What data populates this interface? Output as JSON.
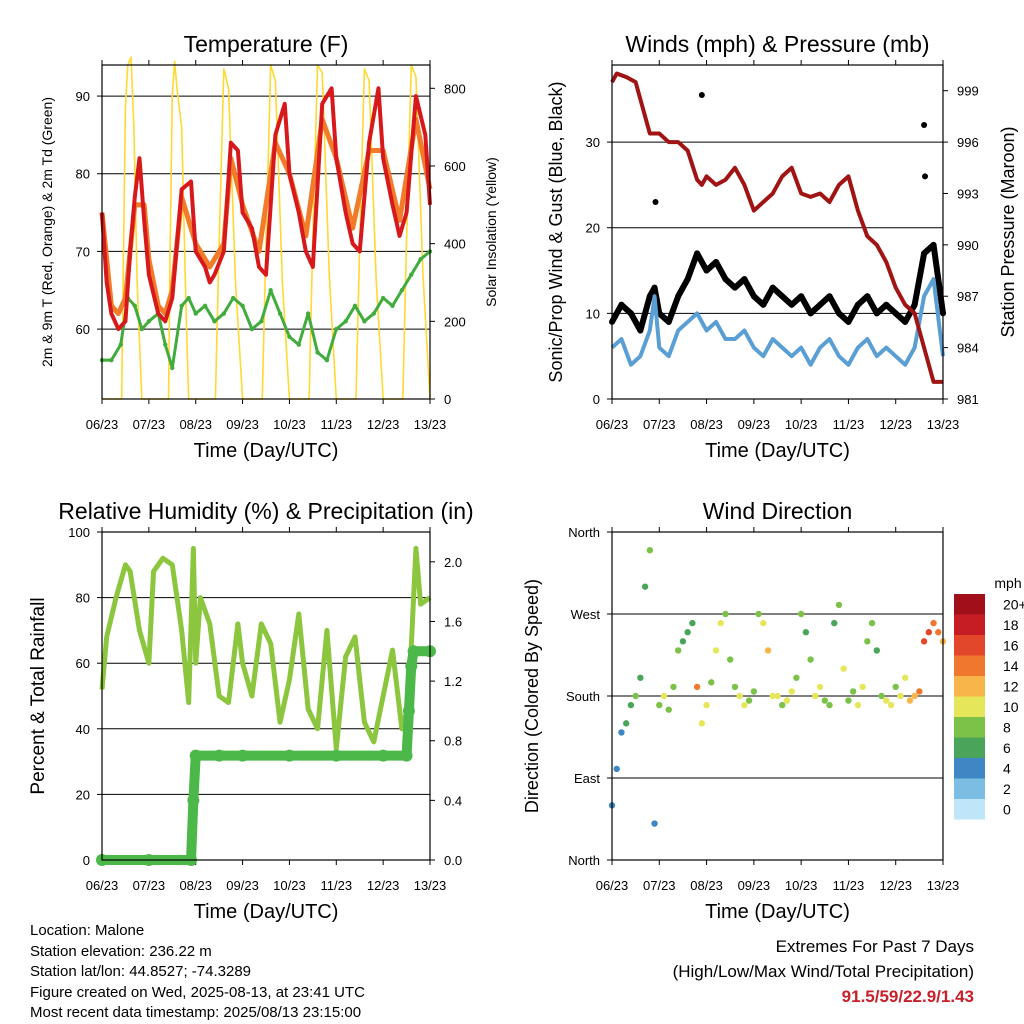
{
  "x_tick_labels": [
    "06/23",
    "07/23",
    "08/23",
    "09/23",
    "10/23",
    "11/23",
    "12/23",
    "13/23"
  ],
  "colors": {
    "temp2m": "#d7191c",
    "temp9m": "#f27b2a",
    "dewpoint": "#41ab3d",
    "solar": "#ffd92f",
    "gust": "#000000",
    "wind": "#5a9fd4",
    "pressure": "#a01414",
    "humidity": "#8cc63f",
    "precip": "#4db84a"
  },
  "footer": {
    "location": "Location: Malone",
    "elevation": "Station elevation: 236.22 m",
    "latlon": "Station lat/lon: 44.8527; -74.3289",
    "created": "Figure created on Wed, 2025-08-13, at 23:41 UTC",
    "recent": "Most recent data timestamp: 2025/08/13 23:15:00",
    "extremes_title": "Extremes For Past 7 Days",
    "extremes_subtitle": "(High/Low/Max Wind/Total Precipitation)",
    "extremes_values": "91.5/59/22.9/1.43"
  },
  "chart_data": [
    {
      "type": "line",
      "title": "Temperature (F)",
      "xlabel": "Time (Day/UTC)",
      "ylabel_left": "2m & 9m T (Red, Orange) & 2m Td (Green)",
      "ylabel_right": "Solar Insolation (Yellow)",
      "ylim_left": [
        51,
        94
      ],
      "ylim_right": [
        0,
        860
      ],
      "yticks_left": [
        "60",
        "70",
        "80",
        "90"
      ],
      "yticks_right": [
        "0",
        "200",
        "400",
        "600",
        "800"
      ],
      "x_days": [
        0,
        1,
        2,
        3,
        4,
        5,
        6,
        7
      ],
      "series": [
        {
          "name": "2m T",
          "x": [
            0,
            0.1,
            0.2,
            0.35,
            0.5,
            0.6,
            0.7,
            0.8,
            0.9,
            1.0,
            1.2,
            1.35,
            1.5,
            1.7,
            1.9,
            2.0,
            2.2,
            2.3,
            2.4,
            2.6,
            2.75,
            2.9,
            3.0,
            3.2,
            3.35,
            3.5,
            3.7,
            3.9,
            4.0,
            4.2,
            4.35,
            4.5,
            4.7,
            4.9,
            5.0,
            5.2,
            5.35,
            5.5,
            5.7,
            5.9,
            6.0,
            6.2,
            6.35,
            6.5,
            6.7,
            6.9,
            7.0
          ],
          "values": [
            75,
            66,
            62,
            60,
            61,
            70,
            77,
            82,
            74,
            67,
            62,
            61,
            64,
            78,
            79,
            70,
            68,
            66,
            67,
            70,
            84,
            83,
            75,
            73,
            68,
            67,
            85,
            89,
            80,
            75,
            70,
            68,
            89,
            91,
            82,
            75,
            71,
            70,
            84,
            91,
            82,
            76,
            72,
            75,
            90,
            85,
            76
          ]
        },
        {
          "name": "9m T",
          "x": [
            0,
            0.2,
            0.35,
            0.5,
            0.7,
            0.9,
            1.0,
            1.2,
            1.35,
            1.5,
            1.7,
            2.0,
            2.3,
            2.6,
            2.75,
            3.0,
            3.35,
            3.7,
            4.0,
            4.35,
            4.7,
            5.0,
            5.35,
            5.7,
            6.0,
            6.35,
            6.7,
            7.0
          ],
          "values": [
            75,
            63,
            62,
            64,
            76,
            76,
            69,
            63,
            62,
            65,
            77,
            71,
            68,
            71,
            82,
            76,
            70,
            84,
            80,
            72,
            87,
            82,
            73,
            83,
            83,
            74,
            87,
            78
          ]
        },
        {
          "name": "2m Td",
          "x": [
            0,
            0.2,
            0.4,
            0.55,
            0.7,
            0.85,
            1.0,
            1.2,
            1.35,
            1.5,
            1.7,
            1.85,
            2.0,
            2.2,
            2.4,
            2.6,
            2.8,
            3.0,
            3.2,
            3.4,
            3.6,
            3.8,
            4.0,
            4.2,
            4.4,
            4.6,
            4.8,
            5.0,
            5.2,
            5.4,
            5.6,
            5.8,
            6.0,
            6.2,
            6.4,
            6.6,
            6.8,
            7.0
          ],
          "values": [
            56,
            56,
            58,
            64,
            63,
            60,
            61,
            62,
            58,
            55,
            63,
            64,
            62,
            63,
            61,
            62,
            64,
            63,
            60,
            61,
            65,
            62,
            59,
            58,
            62,
            57,
            56,
            60,
            61,
            63,
            61,
            62,
            64,
            63,
            65,
            67,
            69,
            70
          ]
        },
        {
          "name": "Solar Insolation",
          "x": [
            0,
            0.42,
            0.45,
            0.5,
            0.55,
            0.62,
            0.68,
            0.75,
            0.85,
            1.0,
            1.42,
            1.45,
            1.5,
            1.55,
            1.6,
            1.7,
            1.8,
            1.85,
            2.0,
            2.42,
            2.5,
            2.6,
            2.7,
            2.85,
            3.0,
            3.42,
            3.5,
            3.6,
            3.7,
            3.85,
            4.0,
            4.42,
            4.5,
            4.6,
            4.7,
            4.85,
            5.0,
            5.42,
            5.5,
            5.6,
            5.7,
            5.85,
            6.0,
            6.42,
            6.5,
            6.6,
            6.7,
            6.85,
            7.0
          ],
          "values": [
            0,
            0,
            300,
            750,
            860,
            880,
            700,
            300,
            0,
            0,
            0,
            350,
            780,
            870,
            800,
            700,
            200,
            0,
            0,
            0,
            400,
            850,
            800,
            300,
            0,
            0,
            400,
            860,
            820,
            300,
            0,
            0,
            420,
            860,
            840,
            320,
            0,
            0,
            400,
            850,
            820,
            310,
            0,
            0,
            410,
            860,
            830,
            320,
            0
          ]
        }
      ]
    },
    {
      "type": "line",
      "title": "Winds (mph) & Pressure (mb)",
      "xlabel": "Time (Day/UTC)",
      "ylabel_left": "Sonic/Prop Wind & Gust (Blue, Black)",
      "ylabel_right": "Station Pressure (Maroon)",
      "ylim_left": [
        0,
        39
      ],
      "ylim_right": [
        981,
        1000.5
      ],
      "yticks_left": [
        "0",
        "10",
        "20",
        "30"
      ],
      "yticks_right": [
        "981",
        "984",
        "987",
        "990",
        "993",
        "996",
        "999"
      ],
      "series": [
        {
          "name": "Gust",
          "x": [
            0,
            0.2,
            0.4,
            0.6,
            0.8,
            0.9,
            1.0,
            1.2,
            1.4,
            1.6,
            1.8,
            2.0,
            2.2,
            2.4,
            2.6,
            2.8,
            3.0,
            3.2,
            3.4,
            3.6,
            3.8,
            4.0,
            4.2,
            4.4,
            4.6,
            4.8,
            5.0,
            5.2,
            5.4,
            5.6,
            5.8,
            6.0,
            6.2,
            6.4,
            6.6,
            6.8,
            7.0
          ],
          "values": [
            9,
            11,
            10,
            8,
            12,
            13,
            10,
            9,
            12,
            14,
            17,
            15,
            16,
            14,
            13,
            14,
            12,
            11,
            13,
            12,
            11,
            12,
            10,
            11,
            12,
            10,
            9,
            11,
            12,
            10,
            11,
            10,
            9,
            11,
            17,
            18,
            10
          ]
        },
        {
          "name": "Wind",
          "x": [
            0,
            0.2,
            0.4,
            0.6,
            0.8,
            0.9,
            1.0,
            1.2,
            1.4,
            1.6,
            1.8,
            2.0,
            2.2,
            2.4,
            2.6,
            2.8,
            3.0,
            3.2,
            3.4,
            3.6,
            3.8,
            4.0,
            4.2,
            4.4,
            4.6,
            4.8,
            5.0,
            5.2,
            5.4,
            5.6,
            5.8,
            6.0,
            6.2,
            6.4,
            6.6,
            6.8,
            7.0
          ],
          "values": [
            6,
            7,
            4,
            5,
            8,
            12,
            6,
            5,
            8,
            9,
            10,
            8,
            9,
            7,
            7,
            8,
            6,
            5,
            7,
            6,
            5,
            6,
            4,
            6,
            7,
            5,
            4,
            6,
            7,
            5,
            6,
            5,
            4,
            6,
            12,
            14,
            5
          ]
        },
        {
          "name": "Gust outliers",
          "x": [
            0.92,
            1.9,
            6.6,
            6.62
          ],
          "values": [
            23,
            35.5,
            32,
            26
          ]
        },
        {
          "name": "Pressure",
          "x": [
            0,
            0.1,
            0.3,
            0.5,
            0.6,
            0.8,
            1.0,
            1.2,
            1.4,
            1.6,
            1.8,
            1.9,
            2.0,
            2.2,
            2.4,
            2.6,
            2.8,
            3.0,
            3.2,
            3.4,
            3.6,
            3.8,
            4.0,
            4.2,
            4.4,
            4.6,
            4.8,
            5.0,
            5.2,
            5.4,
            5.6,
            5.8,
            6.0,
            6.2,
            6.4,
            6.6,
            6.8,
            7.0
          ],
          "values": [
            999.5,
            1000,
            999.8,
            999.5,
            998.5,
            996.5,
            996.5,
            996,
            996,
            995.5,
            993.8,
            993.5,
            994,
            993.5,
            993.8,
            994.5,
            993.5,
            992,
            992.5,
            993,
            994,
            994.5,
            993,
            992.8,
            993,
            992.5,
            993.5,
            994,
            992,
            990.5,
            990,
            989,
            987.5,
            986.5,
            986,
            984,
            982,
            982
          ]
        }
      ]
    },
    {
      "type": "line",
      "title": "Relative Humidity (%) & Precipitation (in)",
      "xlabel": "Time (Day/UTC)",
      "ylabel_left": "Percent & Total Rainfall",
      "ylim_left": [
        0,
        100
      ],
      "ylim_right": [
        0,
        2.2
      ],
      "yticks_left": [
        "0",
        "20",
        "40",
        "60",
        "80",
        "100"
      ],
      "yticks_right": [
        "0.0",
        "0.4",
        "0.8",
        "1.2",
        "1.6",
        "2.0"
      ],
      "series": [
        {
          "name": "Relative Humidity",
          "x": [
            0,
            0.1,
            0.3,
            0.5,
            0.6,
            0.8,
            1.0,
            1.1,
            1.3,
            1.5,
            1.7,
            1.85,
            1.95,
            2.0,
            2.1,
            2.3,
            2.5,
            2.7,
            2.9,
            3.0,
            3.2,
            3.4,
            3.6,
            3.8,
            4.0,
            4.2,
            4.4,
            4.6,
            4.8,
            5.0,
            5.2,
            5.4,
            5.6,
            5.8,
            6.0,
            6.2,
            6.4,
            6.5,
            6.6,
            6.7,
            6.8,
            7.0
          ],
          "values": [
            52,
            68,
            80,
            90,
            88,
            70,
            60,
            88,
            92,
            90,
            70,
            48,
            95,
            60,
            80,
            72,
            50,
            48,
            72,
            60,
            50,
            72,
            66,
            42,
            55,
            75,
            46,
            40,
            70,
            34,
            62,
            68,
            42,
            36,
            50,
            64,
            40,
            45,
            65,
            95,
            78,
            80
          ]
        },
        {
          "name": "Total Rainfall",
          "x": [
            0,
            1.0,
            1.9,
            1.95,
            2.0,
            2.5,
            3.0,
            4.0,
            5.0,
            6.0,
            6.5,
            6.55,
            6.6,
            6.65,
            7.0
          ],
          "values": [
            0,
            0,
            0,
            0.4,
            0.7,
            0.7,
            0.7,
            0.7,
            0.7,
            0.7,
            0.7,
            1.0,
            1.3,
            1.4,
            1.4
          ]
        }
      ]
    },
    {
      "type": "scatter",
      "title": "Wind Direction",
      "xlabel": "Time (Day/UTC)",
      "ylabel_left": "Direction (Colored By Speed)",
      "yticks_left": [
        "North",
        "East",
        "South",
        "West",
        "North"
      ],
      "ylim_left": [
        0,
        360
      ],
      "colorbar_title": "mph",
      "colorbar_labels": [
        "0",
        "2",
        "4",
        "6",
        "8",
        "10",
        "12",
        "14",
        "16",
        "18",
        "20+"
      ],
      "colorbar_colors": [
        "#bfe6f8",
        "#7cbde3",
        "#3f86c4",
        "#4aa55a",
        "#7cc248",
        "#e6e65a",
        "#f8b54a",
        "#f0782e",
        "#e2472b",
        "#c51d23",
        "#a00f1a"
      ],
      "series": [
        {
          "name": "Direction",
          "x": [
            0,
            0.1,
            0.2,
            0.3,
            0.4,
            0.5,
            0.6,
            0.7,
            0.8,
            0.9,
            1.0,
            1.1,
            1.2,
            1.3,
            1.4,
            1.5,
            1.6,
            1.7,
            1.8,
            1.9,
            2.0,
            2.1,
            2.2,
            2.3,
            2.4,
            2.5,
            2.6,
            2.7,
            2.8,
            2.9,
            3.0,
            3.1,
            3.2,
            3.3,
            3.4,
            3.5,
            3.6,
            3.7,
            3.8,
            3.9,
            4.0,
            4.1,
            4.2,
            4.3,
            4.4,
            4.5,
            4.6,
            4.7,
            4.8,
            4.9,
            5.0,
            5.1,
            5.2,
            5.3,
            5.4,
            5.5,
            5.6,
            5.7,
            5.8,
            5.9,
            6.0,
            6.1,
            6.2,
            6.3,
            6.4,
            6.5,
            6.6,
            6.7,
            6.8,
            6.9,
            7.0
          ],
          "values": [
            60,
            100,
            140,
            150,
            170,
            180,
            200,
            300,
            340,
            40,
            170,
            180,
            165,
            190,
            230,
            240,
            250,
            260,
            190,
            150,
            170,
            195,
            230,
            260,
            270,
            220,
            190,
            180,
            170,
            175,
            185,
            270,
            260,
            230,
            180,
            180,
            170,
            175,
            185,
            200,
            270,
            250,
            220,
            180,
            190,
            175,
            170,
            260,
            280,
            210,
            175,
            185,
            170,
            190,
            240,
            260,
            230,
            180,
            175,
            170,
            190,
            180,
            200,
            175,
            180,
            185,
            240,
            250,
            260,
            250,
            240
          ],
          "speeds": [
            3,
            4,
            3,
            5,
            6,
            7,
            5,
            6,
            7,
            4,
            8,
            9,
            7,
            8,
            7,
            6,
            5,
            6,
            13,
            10,
            9,
            8,
            9,
            10,
            8,
            7,
            8,
            9,
            10,
            8,
            7,
            8,
            9,
            11,
            10,
            9,
            8,
            10,
            9,
            8,
            7,
            6,
            8,
            10,
            9,
            8,
            7,
            6,
            8,
            9,
            7,
            8,
            9,
            10,
            8,
            7,
            6,
            7,
            9,
            10,
            8,
            9,
            10,
            11,
            12,
            14,
            15,
            16,
            14,
            13,
            12
          ]
        }
      ]
    }
  ]
}
